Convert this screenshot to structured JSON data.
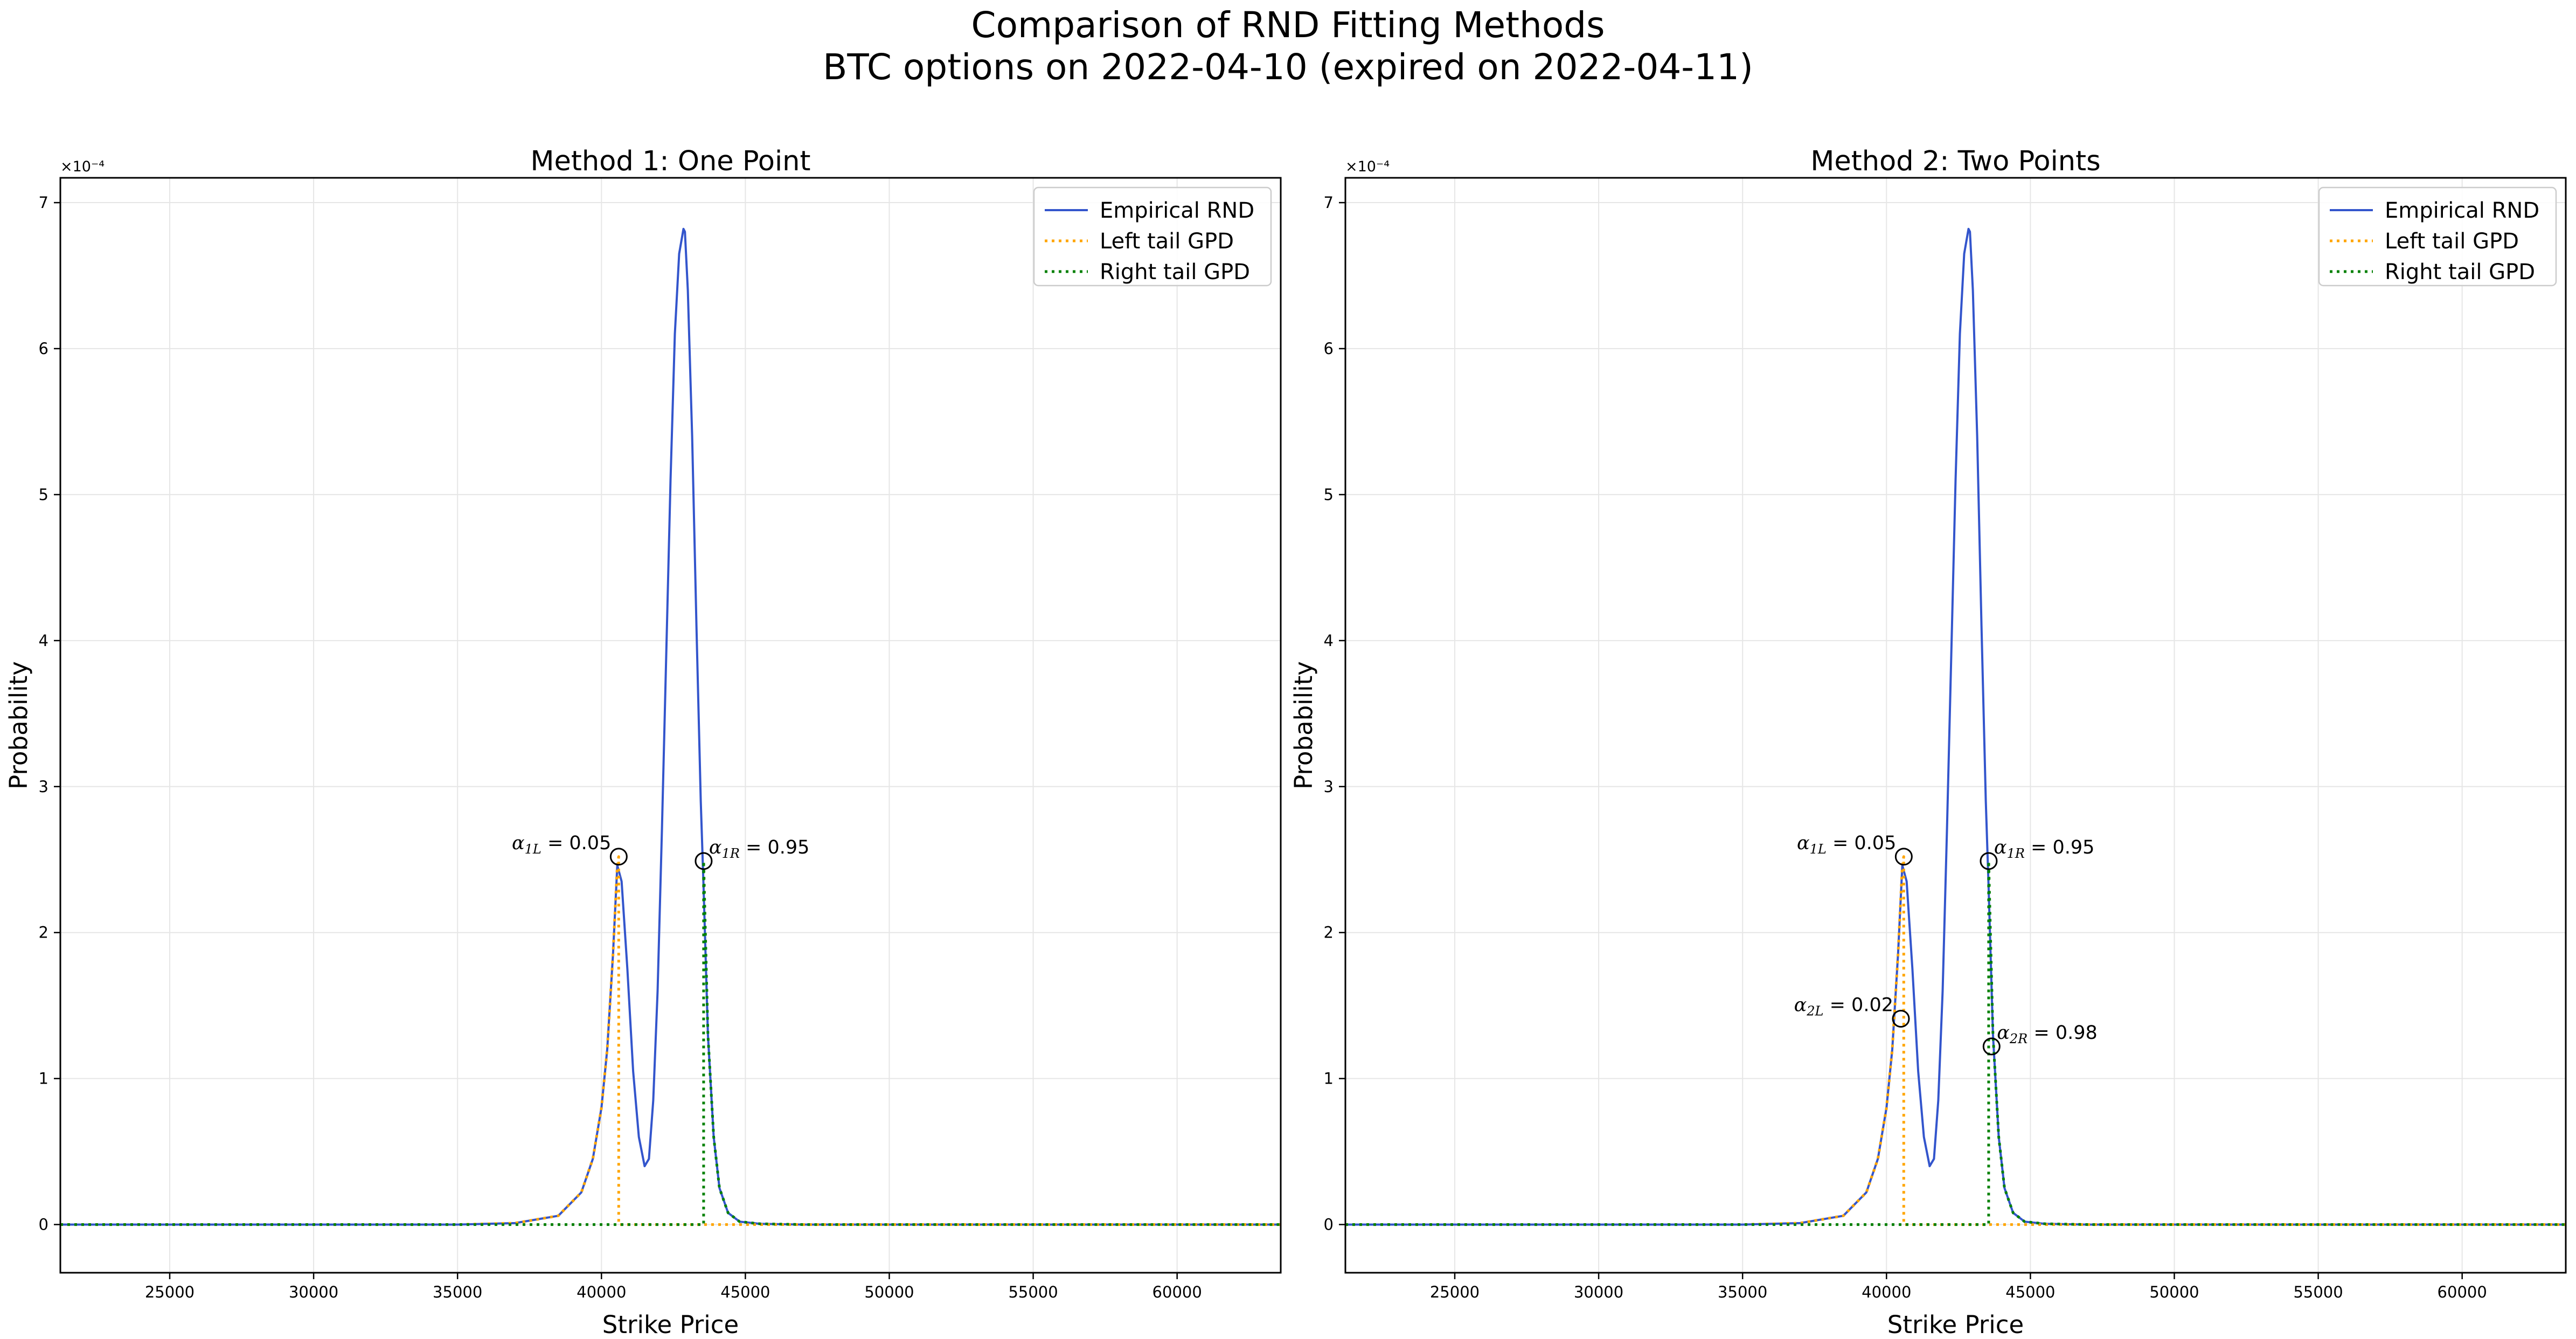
{
  "figure": {
    "title_line1": "Comparison of RND Fitting Methods",
    "title_line2": "BTC options on 2022-04-10 (expired on 2022-04-11)"
  },
  "chart_data": [
    {
      "type": "line",
      "title": "Method 1: One Point",
      "xlabel": "Strike Price",
      "ylabel": "Probability",
      "y_offset_label": "×10⁻⁴",
      "xlim": [
        21200,
        63600
      ],
      "ylim": [
        -0.33,
        7.17
      ],
      "y_unit_multiplier": 0.0001,
      "x_ticks": [
        25000,
        30000,
        35000,
        40000,
        45000,
        50000,
        55000,
        60000
      ],
      "y_ticks": [
        0,
        1,
        2,
        3,
        4,
        5,
        6,
        7
      ],
      "grid": true,
      "legend_position": "top-right",
      "series": [
        {
          "name": "Empirical RND",
          "style": "solid",
          "color": "#3355cc",
          "x": [
            21200,
            35000,
            37000,
            38500,
            39300,
            39700,
            40000,
            40200,
            40400,
            40550,
            40700,
            40900,
            41100,
            41300,
            41500,
            41650,
            41800,
            41950,
            42100,
            42250,
            42400,
            42550,
            42700,
            42850,
            42900,
            43000,
            43150,
            43300,
            43450,
            43550,
            43700,
            43900,
            44100,
            44400,
            44800,
            45500,
            47000,
            55000,
            63600
          ],
          "y": [
            0,
            0,
            0.01,
            0.06,
            0.22,
            0.45,
            0.8,
            1.2,
            1.85,
            2.46,
            2.35,
            1.75,
            1.05,
            0.6,
            0.4,
            0.45,
            0.85,
            1.6,
            2.7,
            3.9,
            5.1,
            6.1,
            6.65,
            6.82,
            6.8,
            6.4,
            5.4,
            4.1,
            2.9,
            2.3,
            1.3,
            0.6,
            0.25,
            0.08,
            0.02,
            0.005,
            0,
            0,
            0
          ]
        },
        {
          "name": "Left tail GPD",
          "style": "dotted",
          "color": "#ffa500",
          "x": [
            21200,
            35000,
            37000,
            38500,
            39300,
            39700,
            40000,
            40200,
            40400,
            40550,
            40600,
            40600,
            63600
          ],
          "y": [
            0,
            0,
            0.01,
            0.06,
            0.22,
            0.45,
            0.8,
            1.2,
            1.85,
            2.46,
            2.52,
            0,
            0
          ]
        },
        {
          "name": "Right tail GPD",
          "style": "dotted",
          "color": "#008000",
          "x": [
            21200,
            43550,
            43550,
            43700,
            43900,
            44100,
            44400,
            44800,
            45500,
            47000,
            55000,
            63600
          ],
          "y": [
            0,
            0,
            2.49,
            1.3,
            0.6,
            0.25,
            0.08,
            0.02,
            0.005,
            0,
            0,
            0
          ]
        }
      ],
      "annotations": [
        {
          "symbol": "α",
          "sub": "1L",
          "text": " = 0.05",
          "x": 40600,
          "y": 2.52,
          "side": "left"
        },
        {
          "symbol": "α",
          "sub": "1R",
          "text": " = 0.95",
          "x": 43550,
          "y": 2.49,
          "side": "right"
        }
      ]
    },
    {
      "type": "line",
      "title": "Method 2: Two Points",
      "xlabel": "Strike Price",
      "ylabel": "Probability",
      "y_offset_label": "×10⁻⁴",
      "xlim": [
        21200,
        63600
      ],
      "ylim": [
        -0.33,
        7.17
      ],
      "y_unit_multiplier": 0.0001,
      "x_ticks": [
        25000,
        30000,
        35000,
        40000,
        45000,
        50000,
        55000,
        60000
      ],
      "y_ticks": [
        0,
        1,
        2,
        3,
        4,
        5,
        6,
        7
      ],
      "grid": true,
      "legend_position": "top-right",
      "series": [
        {
          "name": "Empirical RND",
          "style": "solid",
          "color": "#3355cc",
          "x": [
            21200,
            35000,
            37000,
            38500,
            39300,
            39700,
            40000,
            40200,
            40400,
            40550,
            40700,
            40900,
            41100,
            41300,
            41500,
            41650,
            41800,
            41950,
            42100,
            42250,
            42400,
            42550,
            42700,
            42850,
            42900,
            43000,
            43150,
            43300,
            43450,
            43550,
            43700,
            43900,
            44100,
            44400,
            44800,
            45500,
            47000,
            55000,
            63600
          ],
          "y": [
            0,
            0,
            0.01,
            0.06,
            0.22,
            0.45,
            0.8,
            1.2,
            1.85,
            2.46,
            2.35,
            1.75,
            1.05,
            0.6,
            0.4,
            0.45,
            0.85,
            1.6,
            2.7,
            3.9,
            5.1,
            6.1,
            6.65,
            6.82,
            6.8,
            6.4,
            5.4,
            4.1,
            2.9,
            2.3,
            1.3,
            0.6,
            0.25,
            0.08,
            0.02,
            0.005,
            0,
            0,
            0
          ]
        },
        {
          "name": "Left tail GPD",
          "style": "dotted",
          "color": "#ffa500",
          "x": [
            21200,
            35000,
            37000,
            38500,
            39300,
            39700,
            40000,
            40200,
            40400,
            40550,
            40600,
            40600,
            63600
          ],
          "y": [
            0,
            0,
            0.01,
            0.06,
            0.22,
            0.45,
            0.8,
            1.2,
            1.85,
            2.46,
            2.52,
            0,
            0
          ]
        },
        {
          "name": "Right tail GPD",
          "style": "dotted",
          "color": "#008000",
          "x": [
            21200,
            43550,
            43550,
            43700,
            43900,
            44100,
            44400,
            44800,
            45500,
            47000,
            55000,
            63600
          ],
          "y": [
            0,
            0,
            2.49,
            1.3,
            0.6,
            0.25,
            0.08,
            0.02,
            0.005,
            0,
            0,
            0
          ]
        }
      ],
      "annotations": [
        {
          "symbol": "α",
          "sub": "1L",
          "text": " = 0.05",
          "x": 40600,
          "y": 2.52,
          "side": "left"
        },
        {
          "symbol": "α",
          "sub": "1R",
          "text": " = 0.95",
          "x": 43550,
          "y": 2.49,
          "side": "right"
        },
        {
          "symbol": "α",
          "sub": "2L",
          "text": " = 0.02",
          "x": 40500,
          "y": 1.41,
          "side": "left"
        },
        {
          "symbol": "α",
          "sub": "2R",
          "text": " = 0.98",
          "x": 43650,
          "y": 1.22,
          "side": "right"
        }
      ]
    }
  ],
  "colors": {
    "grid": "#e6e6e6",
    "axes": "#000000",
    "marker_edge": "#000000"
  }
}
